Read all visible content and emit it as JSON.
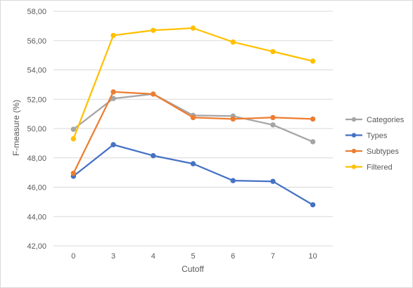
{
  "chart_data": {
    "type": "line",
    "title": "",
    "xlabel": "Cutoff",
    "ylabel": "F-measure (%)",
    "categories": [
      "0",
      "3",
      "4",
      "5",
      "6",
      "7",
      "10"
    ],
    "ylim": [
      42,
      58
    ],
    "ystep": 2,
    "y_tick_labels": [
      "42,00",
      "44,00",
      "46,00",
      "48,00",
      "50,00",
      "52,00",
      "54,00",
      "56,00",
      "58,00"
    ],
    "grid": true,
    "legend_position": "right",
    "series": [
      {
        "name": "Categories",
        "color": "#a5a5a5",
        "values": [
          49.95,
          52.05,
          52.35,
          50.9,
          50.85,
          50.25,
          49.1
        ]
      },
      {
        "name": "Types",
        "color": "#4472c4",
        "values": [
          46.75,
          48.9,
          48.15,
          47.6,
          46.45,
          46.4,
          44.8
        ]
      },
      {
        "name": "Subtypes",
        "color": "#ed7d31",
        "values": [
          46.95,
          52.5,
          52.35,
          50.75,
          50.65,
          50.75,
          50.65
        ]
      },
      {
        "name": "Filtered",
        "color": "#ffc000",
        "values": [
          49.3,
          56.35,
          56.7,
          56.85,
          55.9,
          55.25,
          54.6
        ]
      }
    ]
  }
}
